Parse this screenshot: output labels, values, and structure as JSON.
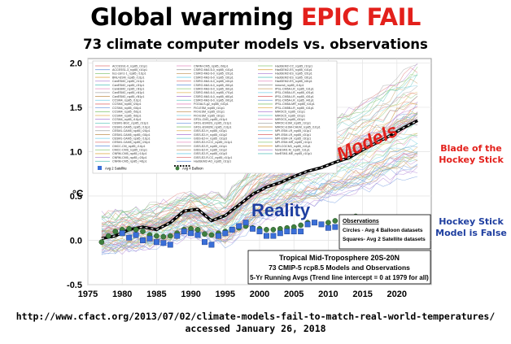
{
  "header": {
    "title_main": "Global warming ",
    "title_accent": "EPIC FAIL",
    "subtitle": "73 climate computer models vs. observations"
  },
  "annotations": {
    "blade_line1": "Blade of the",
    "blade_line2": "Hockey Stick",
    "hockey_line1": "Hockey Stick",
    "hockey_line2": "Model is False",
    "models_label": "Models",
    "reality_label": "Reality"
  },
  "footer": {
    "url": "http://www.cfact.org/2013/07/02/climate-models-fail-to-match-real-world-temperatures/",
    "accessed": "accessed January 26, 2018"
  },
  "colors": {
    "accent_red": "#e3201b",
    "reality_blue": "#1f3fa0",
    "balloon_green": "#3f7f3f",
    "satellite_blue": "#3a6fd8"
  },
  "chart_data": {
    "type": "line",
    "ylabel": "°C",
    "xlim": [
      1975,
      2025
    ],
    "ylim": [
      -0.5,
      2.05
    ],
    "x_ticks": [
      1975,
      1980,
      1985,
      1990,
      1995,
      2000,
      2005,
      2010,
      2015,
      2020
    ],
    "y_ticks": [
      -0.5,
      0.0,
      0.5,
      1.0,
      1.5,
      2.0
    ],
    "y_tick_labels": [
      "-0.5",
      "0.0",
      "0.5",
      "1.0",
      "1.5",
      "2.0"
    ],
    "grid": true,
    "legend_position": "top-left",
    "legend_entries": [
      "ACCESS1-0_rcp85_r1i1p1",
      "ACCESS1-3_rcp85_r1i1p1",
      "bcc-csm1-1_rcp85_r1i1p1",
      "BNU-ESM_rcp85_r1i1p1",
      "CanESM2_rcp85_r1i1p1",
      "CanESM2_rcp85_r2i1p1",
      "CanESM2_rcp85_r3i1p1",
      "CanESM2_rcp85_r4i1p1",
      "CanESM2_rcp85_r5i1p1",
      "CCSM4_rcp85_r1i1p1",
      "CCSM4_rcp85_r2i1p1",
      "CCSM4_rcp85_r3i1p1",
      "CCSM4_rcp85_r5i1p1",
      "CCSM4_rcp85_r6i1p1",
      "CCSM4_rcp85_r1i1p1",
      "CESM1-BGC_rcp85_r1i1p1",
      "CESM1-CAM5_rcp85_r1i1p1",
      "CESM1-CAM5_rcp85_r2i1p1",
      "CESM1-CAM5_rcp85_r3i1p1",
      "CESM1-CAM5_rcp85_r1i1p1",
      "CESM1-CAM5_rcp85_r2i1p1",
      "CMCC-CM_rcp85_r1i1p1",
      "CMCC-CMS_rcp85_r1i1p1",
      "CNRM-CM5_rcp85_r1i1p1",
      "CNRM-CM5_rcp85_r2i1p1",
      "CNRM-CM5_rcp85_r4i1p1",
      "CNRM-CM5_rcp85_r6i1p1",
      "CSIRO-Mk3-6-0_rcp85_r1i1p1",
      "CSIRO-Mk3-6-0_rcp85_r2i1p1",
      "CSIRO-Mk3-6-0_rcp85_r3i1p1",
      "CSIRO-Mk3-6-0_rcp85_r4i1p1",
      "CSIRO-Mk3-6-0_rcp85_r5i1p1",
      "CSIRO-Mk3-6-0_rcp85_r6i1p1",
      "CSIRO-Mk3-6-0_rcp85_r7i1p1",
      "CSIRO-Mk3-6-0_rcp85_r8i1p1",
      "CSIRO-Mk3-6-0_rcp85_r9i1p1",
      "FGOALS-g2_rcp85_r1i1p1",
      "FIO-ESM_rcp85_r1i1p1",
      "FIO-ESM_rcp85_r2i1p1",
      "FIO-ESM_rcp85_r3i1p1",
      "GFDL-CM3_rcp85_r1i1p1",
      "GFDL-ESM2G_rcp85_r1i1p1",
      "GFDL-ESM2M_rcp85_r1i1p1",
      "GISS-E2-H_rcp85_r1i1p1",
      "GISS-E2-H_rcp85_r1i1p2",
      "GISS-E2-H_rcp85_r1i1p3",
      "GISS-E2-H-CC_rcp85_r1i1p1",
      "GISS-E2-R_rcp85_r1i1p1",
      "GISS-E2-R_rcp85_r1i1p2",
      "GISS-E2-R_rcp85_r1i1p3",
      "GISS-E2-R-CC_rcp85_r1i1p1",
      "HadGEM2-AO_rcp85_r1i1p1",
      "HadGEM2-CC_rcp85_r1i1p1",
      "HadGEM2-ES_rcp85_r1i1p1",
      "HadGEM2-ES_rcp85_r2i1p1",
      "HadGEM2-ES_rcp85_r3i1p1",
      "HadGEM2-ES_rcp85_r4i1p1",
      "inmcm4_rcp85_r1i1p1",
      "IPSL-CM5A-LR_rcp85_r1i1p1",
      "IPSL-CM5A-LR_rcp85_r2i1p1",
      "IPSL-CM5A-LR_rcp85_r3i1p1",
      "IPSL-CM5A-LR_rcp85_r4i1p1",
      "IPSL-CM5A-MR_rcp85_r1i1p1",
      "IPSL-CM5B-LR_rcp85_r1i1p1",
      "MIROC5_rcp85_r1i1p1",
      "MIROC5_rcp85_r2i1p1",
      "MIROC5_rcp85_r3i1p1",
      "MIROC-ESM_rcp85_r1i1p1",
      "MIROC-ESM-CHEM_rcp85_r1i1p1",
      "MPI-ESM-LR_rcp85_r1i1p1",
      "MPI-ESM-LR_rcp85_r2i1p1",
      "MPI-ESM-LR_rcp85_r3i1p1",
      "MPI-ESM-MR_rcp85_r1i1p1",
      "MRI-CGCM3_rcp85_r1i1p1",
      "NorESM1-M_rcp85_r1i1p1",
      "NorESM1-ME_rcp85_r1i1p1"
    ],
    "legend_summary": [
      "Avg 2 Satellite",
      "Avg 4 Balloon"
    ],
    "observations_box": {
      "heading": "Observations",
      "line1": "Circles - Avg 4 Balloon datasets",
      "line2": "Squares- Avg 2 Satellite datasets"
    },
    "caption_box": {
      "line1": "Tropical Mid-Troposphere 20S-20N",
      "line2": "73 CMIP-5 rcp8.5 Models and Observations",
      "line3": "5-Yr Running Avgs (Trend line intercept = 0 at 1979 for all)"
    },
    "series": [
      {
        "name": "Model mean",
        "x": [
          1977,
          1979,
          1981,
          1983,
          1985,
          1987,
          1989,
          1991,
          1993,
          1995,
          1997,
          1999,
          2001,
          2003,
          2005,
          2007,
          2009,
          2011,
          2013,
          2015,
          2017,
          2019,
          2021,
          2023
        ],
        "values": [
          0.02,
          0.05,
          0.12,
          0.15,
          0.12,
          0.2,
          0.33,
          0.35,
          0.22,
          0.28,
          0.4,
          0.52,
          0.6,
          0.65,
          0.72,
          0.78,
          0.82,
          0.88,
          0.93,
          1.02,
          1.1,
          1.18,
          1.27,
          1.35
        ]
      },
      {
        "name": "Avg 4 Balloon",
        "x": [
          1977,
          1978,
          1979,
          1980,
          1981,
          1982,
          1983,
          1984,
          1985,
          1986,
          1987,
          1988,
          1989,
          1990,
          1991,
          1992,
          1993,
          1994,
          1995,
          1996,
          1997,
          1998,
          1999,
          2000,
          2001,
          2002,
          2003,
          2004,
          2005,
          2006,
          2007,
          2008,
          2009,
          2010,
          2011,
          2012,
          2013,
          2014
        ],
        "values": [
          -0.02,
          0.05,
          0.1,
          0.12,
          0.13,
          0.12,
          0.1,
          0.06,
          0.05,
          0.04,
          0.05,
          0.08,
          0.12,
          0.13,
          0.12,
          0.07,
          0.06,
          0.08,
          0.1,
          0.12,
          0.14,
          0.16,
          0.14,
          0.13,
          0.12,
          0.12,
          0.13,
          0.14,
          0.15,
          0.17,
          0.2,
          0.2,
          0.18,
          0.2,
          0.22,
          0.24,
          0.25,
          0.27
        ]
      },
      {
        "name": "Avg 2 Satellite",
        "x": [
          1980,
          1981,
          1982,
          1983,
          1984,
          1985,
          1986,
          1987,
          1988,
          1989,
          1990,
          1991,
          1992,
          1993,
          1994,
          1995,
          1996,
          1997,
          1998,
          1999,
          2000,
          2001,
          2002,
          2003,
          2004,
          2005,
          2006,
          2007,
          2008,
          2009,
          2010,
          2011,
          2012,
          2013,
          2014
        ],
        "values": [
          0.08,
          0.03,
          0.06,
          0.0,
          0.02,
          -0.02,
          -0.03,
          -0.05,
          0.05,
          0.1,
          0.08,
          0.06,
          -0.02,
          -0.05,
          0.05,
          0.08,
          0.12,
          0.16,
          0.2,
          0.13,
          0.1,
          0.05,
          0.05,
          0.08,
          0.1,
          0.1,
          0.1,
          0.18,
          0.2,
          0.18,
          0.14,
          0.15,
          0.18,
          0.2,
          0.23
        ]
      }
    ],
    "model_spread": {
      "x": [
        1977,
        1985,
        1990,
        1995,
        2000,
        2005,
        2010,
        2015,
        2020,
        2023
      ],
      "low": [
        -0.15,
        -0.08,
        0.05,
        -0.05,
        0.2,
        0.35,
        0.45,
        0.55,
        0.7,
        0.75
      ],
      "high": [
        0.3,
        0.4,
        0.55,
        0.5,
        0.95,
        1.15,
        1.35,
        1.55,
        1.85,
        2.0
      ]
    }
  }
}
